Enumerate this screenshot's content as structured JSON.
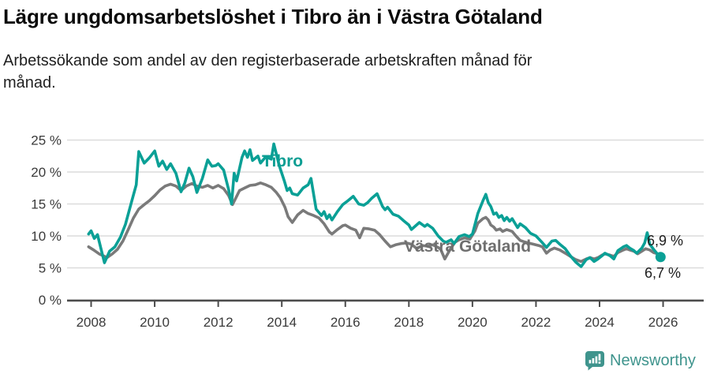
{
  "header": {
    "title": "Lägre ungdomsarbetslöshet i Tibro än i Västra Götaland",
    "subtitle": "Arbetssökande som andel av den registerbaserade arbetskraften månad för månad."
  },
  "chart": {
    "series_labels": {
      "tibro": "Tibro",
      "vastra_gotaland": "Västra Götaland"
    },
    "end_labels": {
      "vastra_gotaland": "6,9 %",
      "tibro": "6,7 %"
    }
  },
  "chart_data": {
    "type": "line",
    "title": "Lägre ungdomsarbetslöshet i Tibro än i Västra Götaland",
    "subtitle": "Arbetssökande som andel av den registerbaserade arbetskraften månad för månad.",
    "x_ticks": [
      2008,
      2010,
      2012,
      2014,
      2016,
      2018,
      2020,
      2022,
      2024,
      2026
    ],
    "y_ticks": [
      0,
      5,
      10,
      15,
      20,
      25
    ],
    "y_tick_labels": [
      "0 %",
      "5 %",
      "10 %",
      "15 %",
      "20 %",
      "25 %"
    ],
    "x_range": [
      2007.75,
      2026.5
    ],
    "y_range": [
      0,
      25
    ],
    "grid": true,
    "colors": {
      "tibro": "#0aa096",
      "vastra_gotaland": "#7a7a7a",
      "gridline": "#dcdcdc",
      "axis": "#4c4c4c"
    },
    "series": [
      {
        "name": "Tibro",
        "color": "#0aa096",
        "x": [
          2007.92,
          2008.0,
          2008.1,
          2008.2,
          2008.42,
          2008.58,
          2008.75,
          2008.92,
          2009.08,
          2009.25,
          2009.42,
          2009.5,
          2009.67,
          2009.83,
          2010.0,
          2010.13,
          2010.25,
          2010.38,
          2010.5,
          2010.67,
          2010.83,
          2010.95,
          2011.08,
          2011.2,
          2011.33,
          2011.5,
          2011.67,
          2011.8,
          2011.92,
          2012.0,
          2012.17,
          2012.33,
          2012.42,
          2012.5,
          2012.58,
          2012.75,
          2012.83,
          2012.92,
          2013.0,
          2013.08,
          2013.25,
          2013.33,
          2013.5,
          2013.67,
          2013.75,
          2013.92,
          2014.08,
          2014.17,
          2014.25,
          2014.33,
          2014.5,
          2014.67,
          2014.83,
          2014.92,
          2015.08,
          2015.25,
          2015.33,
          2015.42,
          2015.5,
          2015.58,
          2015.75,
          2015.92,
          2016.08,
          2016.25,
          2016.42,
          2016.58,
          2016.7,
          2016.83,
          2017.0,
          2017.17,
          2017.25,
          2017.33,
          2017.5,
          2017.67,
          2017.83,
          2018.0,
          2018.08,
          2018.33,
          2018.5,
          2018.58,
          2018.75,
          2018.92,
          2019.08,
          2019.17,
          2019.33,
          2019.42,
          2019.58,
          2019.75,
          2019.9,
          2020.0,
          2020.17,
          2020.33,
          2020.42,
          2020.5,
          2020.58,
          2020.67,
          2020.75,
          2020.83,
          2020.92,
          2021.0,
          2021.08,
          2021.17,
          2021.25,
          2021.42,
          2021.5,
          2021.67,
          2021.83,
          2022.0,
          2022.17,
          2022.33,
          2022.5,
          2022.62,
          2022.75,
          2022.92,
          2023.08,
          2023.25,
          2023.42,
          2023.58,
          2023.7,
          2023.83,
          2023.95,
          2024.08,
          2024.17,
          2024.33,
          2024.45,
          2024.58,
          2024.75,
          2024.85,
          2024.95,
          2025.08,
          2025.17,
          2025.33,
          2025.42,
          2025.5,
          2025.58,
          2025.7,
          2025.8,
          2025.92
        ],
        "y": [
          10.3,
          10.8,
          9.6,
          10.2,
          5.8,
          7.6,
          8.3,
          9.8,
          11.8,
          14.9,
          18.0,
          23.2,
          21.4,
          22.2,
          23.3,
          20.9,
          21.7,
          20.4,
          21.3,
          19.8,
          16.9,
          18.3,
          20.6,
          19.3,
          16.8,
          19.0,
          21.9,
          20.9,
          21.0,
          21.3,
          20.3,
          17.2,
          15.0,
          19.8,
          18.6,
          22.3,
          23.3,
          22.3,
          23.5,
          21.8,
          22.5,
          21.4,
          22.4,
          22.0,
          24.4,
          21.0,
          18.6,
          17.1,
          17.5,
          16.6,
          16.4,
          17.5,
          18.0,
          19.0,
          14.2,
          13.2,
          13.8,
          12.7,
          13.3,
          12.5,
          13.8,
          14.9,
          15.5,
          16.2,
          15.0,
          14.8,
          15.2,
          15.9,
          16.6,
          14.6,
          14.1,
          14.5,
          13.4,
          13.1,
          12.4,
          11.7,
          11.0,
          12.1,
          11.5,
          11.8,
          11.2,
          10.0,
          9.2,
          9.0,
          9.4,
          8.8,
          9.9,
          10.2,
          9.9,
          10.3,
          13.5,
          15.5,
          16.5,
          15.2,
          14.6,
          13.4,
          13.6,
          12.9,
          13.2,
          12.4,
          12.9,
          12.3,
          12.7,
          11.3,
          11.9,
          11.3,
          10.4,
          10.0,
          9.1,
          8.2,
          9.2,
          9.3,
          8.7,
          8.0,
          6.9,
          5.9,
          5.2,
          6.3,
          6.6,
          6.0,
          6.4,
          6.9,
          7.3,
          6.9,
          6.4,
          7.7,
          8.3,
          8.5,
          8.1,
          7.7,
          7.3,
          8.1,
          8.9,
          10.5,
          8.7,
          7.9,
          7.3,
          6.7
        ]
      },
      {
        "name": "Västra Götaland",
        "color": "#7a7a7a",
        "x": [
          2007.92,
          2008.08,
          2008.25,
          2008.42,
          2008.5,
          2008.67,
          2008.83,
          2009.0,
          2009.17,
          2009.33,
          2009.5,
          2009.67,
          2009.83,
          2010.0,
          2010.17,
          2010.33,
          2010.5,
          2010.67,
          2010.83,
          2011.0,
          2011.17,
          2011.33,
          2011.5,
          2011.67,
          2011.83,
          2012.0,
          2012.17,
          2012.33,
          2012.45,
          2012.58,
          2012.67,
          2012.83,
          2013.0,
          2013.17,
          2013.33,
          2013.5,
          2013.67,
          2013.83,
          2013.95,
          2014.1,
          2014.2,
          2014.33,
          2014.5,
          2014.67,
          2014.83,
          2015.0,
          2015.17,
          2015.33,
          2015.5,
          2015.58,
          2015.75,
          2015.92,
          2016.0,
          2016.17,
          2016.33,
          2016.45,
          2016.58,
          2016.75,
          2016.92,
          2017.08,
          2017.25,
          2017.42,
          2017.58,
          2017.75,
          2017.92,
          2018.08,
          2018.25,
          2018.42,
          2018.58,
          2018.75,
          2018.92,
          2019.0,
          2019.13,
          2019.3,
          2019.45,
          2019.58,
          2019.75,
          2019.92,
          2020.08,
          2020.17,
          2020.33,
          2020.42,
          2020.5,
          2020.58,
          2020.67,
          2020.75,
          2020.87,
          2020.95,
          2021.08,
          2021.25,
          2021.37,
          2021.5,
          2021.62,
          2021.75,
          2021.92,
          2022.08,
          2022.2,
          2022.33,
          2022.45,
          2022.58,
          2022.75,
          2022.92,
          2023.08,
          2023.25,
          2023.42,
          2023.58,
          2023.7,
          2023.83,
          2023.95,
          2024.08,
          2024.17,
          2024.33,
          2024.45,
          2024.58,
          2024.75,
          2024.85,
          2024.95,
          2025.08,
          2025.2,
          2025.33,
          2025.45,
          2025.58,
          2025.7,
          2025.83,
          2025.92
        ],
        "y": [
          8.3,
          7.8,
          7.2,
          6.8,
          6.6,
          7.2,
          7.9,
          9.2,
          11.0,
          12.8,
          14.2,
          14.9,
          15.5,
          16.3,
          17.2,
          17.8,
          18.1,
          17.8,
          17.1,
          17.8,
          18.2,
          17.8,
          17.6,
          17.9,
          17.5,
          17.9,
          17.4,
          16.3,
          14.9,
          16.2,
          17.1,
          17.5,
          17.9,
          18.0,
          18.3,
          18.0,
          17.6,
          16.8,
          16.0,
          14.5,
          13.0,
          12.1,
          13.3,
          14.0,
          13.5,
          13.2,
          12.8,
          11.9,
          10.6,
          10.3,
          11.0,
          11.6,
          11.7,
          11.2,
          10.9,
          9.7,
          11.2,
          11.1,
          10.9,
          10.2,
          9.2,
          8.3,
          8.6,
          8.8,
          8.9,
          8.7,
          8.0,
          8.5,
          8.4,
          8.6,
          8.2,
          7.9,
          6.4,
          7.9,
          9.0,
          9.4,
          9.7,
          9.5,
          10.8,
          12.0,
          12.7,
          12.9,
          12.5,
          11.7,
          11.4,
          10.9,
          11.1,
          10.7,
          11.0,
          10.7,
          10.0,
          9.3,
          9.1,
          8.9,
          8.7,
          8.5,
          8.3,
          7.3,
          7.8,
          8.1,
          7.8,
          7.3,
          6.8,
          6.3,
          6.0,
          6.4,
          6.6,
          6.4,
          6.6,
          7.0,
          7.2,
          7.0,
          6.8,
          7.4,
          7.8,
          8.0,
          7.8,
          7.6,
          7.2,
          7.6,
          8.0,
          7.8,
          7.4,
          7.2,
          6.9
        ]
      }
    ],
    "end_dot": {
      "series": "Tibro",
      "x": 2025.92,
      "y": 6.7
    },
    "end_values": {
      "Tibro": "6,7 %",
      "Västra Götaland": "6,9 %"
    }
  },
  "footer": {
    "brand": "Newsworthy"
  }
}
